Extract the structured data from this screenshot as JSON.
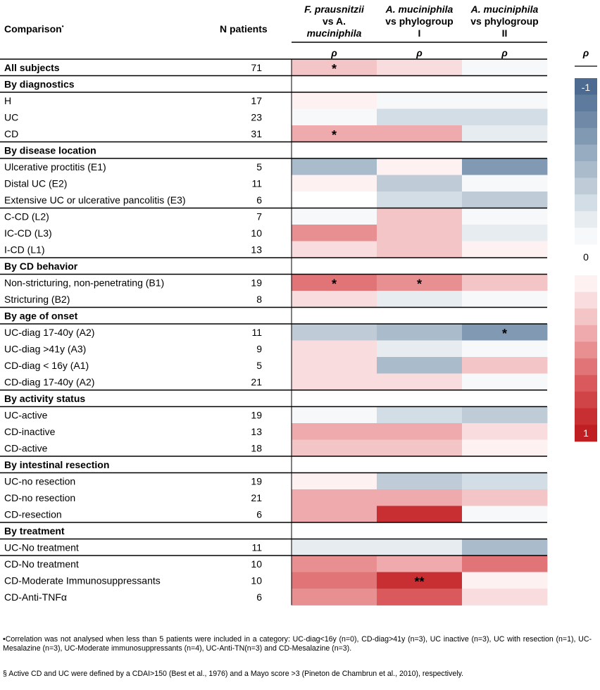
{
  "chart_data": {
    "type": "heatmap",
    "value_scale": "rho color class, -10 = rho -1 (dark blue) ... 0 = 0 (white) ... 10 = rho 1 (red)",
    "columns": [
      {
        "label_lines": [
          "F. prausnitzii",
          "vs A.",
          "muciniphila"
        ],
        "rho": "ρ"
      },
      {
        "label_lines": [
          "A. muciniphila",
          "vs phylogroup",
          "I"
        ],
        "rho": "ρ"
      },
      {
        "label_lines": [
          "A. muciniphila",
          "vs phylogroup",
          "II"
        ],
        "rho": "ρ"
      }
    ],
    "header": {
      "comparison": "Comparison",
      "comparison_mark": "•",
      "n_patients": "N patients"
    },
    "rows": [
      {
        "label": "All subjects",
        "n": "71",
        "bold": true,
        "values": [
          3,
          2,
          -1
        ],
        "stars": [
          "*",
          "",
          ""
        ]
      },
      {
        "label": "By diagnostics",
        "section": true
      },
      {
        "label": "H",
        "n": "17",
        "values": [
          1,
          -1,
          -1
        ],
        "stars": [
          "",
          "",
          ""
        ]
      },
      {
        "label": "UC",
        "n": "23",
        "values": [
          -1,
          -3,
          -3
        ],
        "stars": [
          "",
          "",
          ""
        ]
      },
      {
        "label": "CD",
        "n": "31",
        "values": [
          4,
          4,
          -2
        ],
        "stars": [
          "*",
          "",
          ""
        ]
      },
      {
        "label": "By disease location",
        "section": true
      },
      {
        "label": "Ulcerative proctitis (E1)",
        "n": "5",
        "values": [
          -5,
          1,
          -7
        ],
        "stars": [
          "",
          "",
          ""
        ]
      },
      {
        "label": "Distal UC (E2)",
        "n": "11",
        "values": [
          1,
          -4,
          -1
        ],
        "stars": [
          "",
          "",
          ""
        ]
      },
      {
        "label": "Extensive UC or ulcerative pancolitis (E3)",
        "n": "6",
        "values": [
          0,
          -3,
          -4
        ],
        "stars": [
          "",
          "",
          ""
        ]
      },
      {
        "label": "C-CD (L2)",
        "n": "7",
        "values": [
          -1,
          3,
          -1
        ],
        "stars": [
          "",
          "",
          ""
        ],
        "line_above": true
      },
      {
        "label": "IC-CD (L3)",
        "n": "10",
        "values": [
          5,
          3,
          -2
        ],
        "stars": [
          "",
          "",
          ""
        ]
      },
      {
        "label": "I-CD (L1)",
        "n": "13",
        "values": [
          2,
          3,
          1
        ],
        "stars": [
          "",
          "",
          ""
        ]
      },
      {
        "label": "By CD behavior",
        "section": true
      },
      {
        "label": "Non-stricturing, non-penetrating (B1)",
        "n": "19",
        "values": [
          6,
          5,
          3
        ],
        "stars": [
          "*",
          "*",
          ""
        ]
      },
      {
        "label": "Stricturing (B2)",
        "n": "8",
        "values": [
          2,
          -2,
          -1
        ],
        "stars": [
          "",
          "",
          ""
        ]
      },
      {
        "label": "By age of onset",
        "section": true
      },
      {
        "label": "UC-diag 17-40y (A2)",
        "n": "11",
        "values": [
          -4,
          -5,
          -7
        ],
        "stars": [
          "",
          "",
          "*"
        ]
      },
      {
        "label": "UC-diag >41y (A3)",
        "n": "9",
        "values": [
          2,
          -2,
          -1
        ],
        "stars": [
          "",
          "",
          ""
        ]
      },
      {
        "label": "CD-diag < 16y (A1)",
        "n": "5",
        "values": [
          2,
          -5,
          3
        ],
        "stars": [
          "",
          "",
          ""
        ]
      },
      {
        "label": "CD-diag 17-40y (A2)",
        "n": "21",
        "values": [
          2,
          2,
          -1
        ],
        "stars": [
          "",
          "",
          ""
        ]
      },
      {
        "label": "By activity status",
        "section": true
      },
      {
        "label": "UC-active",
        "n": "19",
        "values": [
          -1,
          -3,
          -4
        ],
        "stars": [
          "",
          "",
          ""
        ]
      },
      {
        "label": "CD-inactive",
        "n": "13",
        "values": [
          4,
          4,
          2
        ],
        "stars": [
          "",
          "",
          ""
        ]
      },
      {
        "label": "CD-active",
        "n": "18",
        "values": [
          3,
          3,
          1
        ],
        "stars": [
          "",
          "",
          ""
        ]
      },
      {
        "label": "By intestinal resection",
        "section": true
      },
      {
        "label": "UC-no resection",
        "n": "19",
        "values": [
          1,
          -4,
          -3
        ],
        "stars": [
          "",
          "",
          ""
        ]
      },
      {
        "label": "CD-no resection",
        "n": "21",
        "values": [
          4,
          4,
          3
        ],
        "stars": [
          "",
          "",
          ""
        ]
      },
      {
        "label": "CD-resection",
        "n": "6",
        "values": [
          4,
          9,
          -1
        ],
        "stars": [
          "",
          "",
          ""
        ]
      },
      {
        "label": "By treatment",
        "section": true
      },
      {
        "label": "UC-No treatment",
        "n": "11",
        "values": [
          -2,
          -2,
          -5
        ],
        "stars": [
          "",
          "",
          ""
        ]
      },
      {
        "label": "CD-No treatment",
        "n": "10",
        "values": [
          5,
          4,
          6
        ],
        "stars": [
          "",
          "",
          ""
        ],
        "line_above": true
      },
      {
        "label": "CD-Moderate Immunosuppressants",
        "n": "10",
        "values": [
          6,
          9,
          1
        ],
        "stars": [
          "",
          "**",
          ""
        ]
      },
      {
        "label": "CD-Anti-TNFα",
        "n": "6",
        "values": [
          5,
          7,
          2
        ],
        "stars": [
          "",
          "",
          ""
        ]
      }
    ],
    "legend": {
      "title": "ρ",
      "top_label": "-1",
      "mid_label": "0",
      "bottom_label": "1",
      "placement": "right",
      "blue_steps": [
        -10,
        -9,
        -8,
        -7,
        -6,
        -5,
        -4,
        -3,
        -2,
        -1
      ],
      "red_steps": [
        1,
        2,
        3,
        4,
        5,
        6,
        7,
        8,
        9,
        10
      ]
    },
    "palette": {
      "blue": [
        "#f6f8fa",
        "#e7ecf1",
        "#d3dde6",
        "#bfccd8",
        "#aabbcc",
        "#97abc1",
        "#8299b4",
        "#7089a7",
        "#5e7a9c",
        "#4d6b90"
      ],
      "red": [
        "#fdf1f2",
        "#f9dcdd",
        "#f4c5c6",
        "#eeaaac",
        "#e88f92",
        "#e07477",
        "#d9595d",
        "#d04346",
        "#c82f32",
        "#bf1f22"
      ]
    }
  },
  "footnotes": {
    "note1": "•Correlation was not analysed when less than 5 patients were included in a category: UC-diag<16y (n=0), CD-diag>41y (n=3), UC inactive (n=3), UC with resection (n=1), UC-Mesalazine (n=3), UC-Moderate immunosuppressants (n=4), UC-Anti-TN(n=3) and CD-Mesalazine (n=3).",
    "note2": "§ Active CD and UC were defined by a CDAI>150 (Best et al., 1976) and a Mayo score >3 (Pineton de Chambrun et al., 2010), respectively."
  }
}
